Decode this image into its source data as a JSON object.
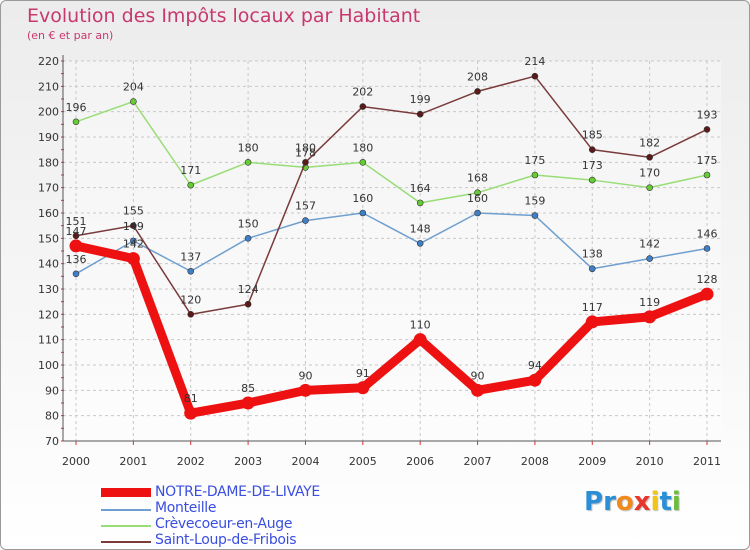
{
  "header": {
    "title": "Evolution des Impôts locaux par Habitant",
    "subtitle": "(en € et par an)"
  },
  "logo": {
    "text": "Proxiti",
    "letters": [
      "P",
      "r",
      "o",
      "x",
      "i",
      "t",
      "i"
    ],
    "letter_colors": [
      "#2a8fd6",
      "#2a8fd6",
      "#f08a1c",
      "#e8362c",
      "#f0c419",
      "#2a8fd6",
      "#6bbd3c"
    ]
  },
  "chart_data": {
    "type": "line",
    "title": "Evolution des Impôts locaux par Habitant",
    "subtitle": "(en € et par an)",
    "xlabel": "",
    "ylabel": "",
    "ylim": [
      70,
      220
    ],
    "yticks": [
      70,
      80,
      90,
      100,
      110,
      120,
      130,
      140,
      150,
      160,
      170,
      180,
      190,
      200,
      210,
      220
    ],
    "grid": true,
    "legend": "bottom-left",
    "x": [
      "2000",
      "2001",
      "2002",
      "2003",
      "2004",
      "2005",
      "2006",
      "2007",
      "2008",
      "2009",
      "2010",
      "2011"
    ],
    "series": [
      {
        "name": "NOTRE-DAME-DE-LIVAYE",
        "color": "#ee1111",
        "marker": "#ee1111",
        "bold": true,
        "values": [
          147,
          142,
          81,
          85,
          90,
          91,
          110,
          90,
          94,
          117,
          119,
          128
        ]
      },
      {
        "name": "Monteille",
        "color": "#6f9fcf",
        "marker": "#3f7fc7",
        "bold": false,
        "values": [
          136,
          149,
          137,
          150,
          157,
          160,
          148,
          160,
          159,
          138,
          142,
          146
        ]
      },
      {
        "name": "Crèvecoeur-en-Auge",
        "color": "#99dd77",
        "marker": "#66cc33",
        "bold": false,
        "values": [
          196,
          204,
          171,
          180,
          178,
          180,
          164,
          168,
          175,
          173,
          170,
          175
        ]
      },
      {
        "name": "Saint-Loup-de-Fribois",
        "color": "#7a3b3b",
        "marker": "#5a1a1a",
        "bold": false,
        "values": [
          151,
          155,
          120,
          124,
          180,
          202,
          199,
          208,
          214,
          185,
          182,
          193
        ]
      }
    ]
  }
}
